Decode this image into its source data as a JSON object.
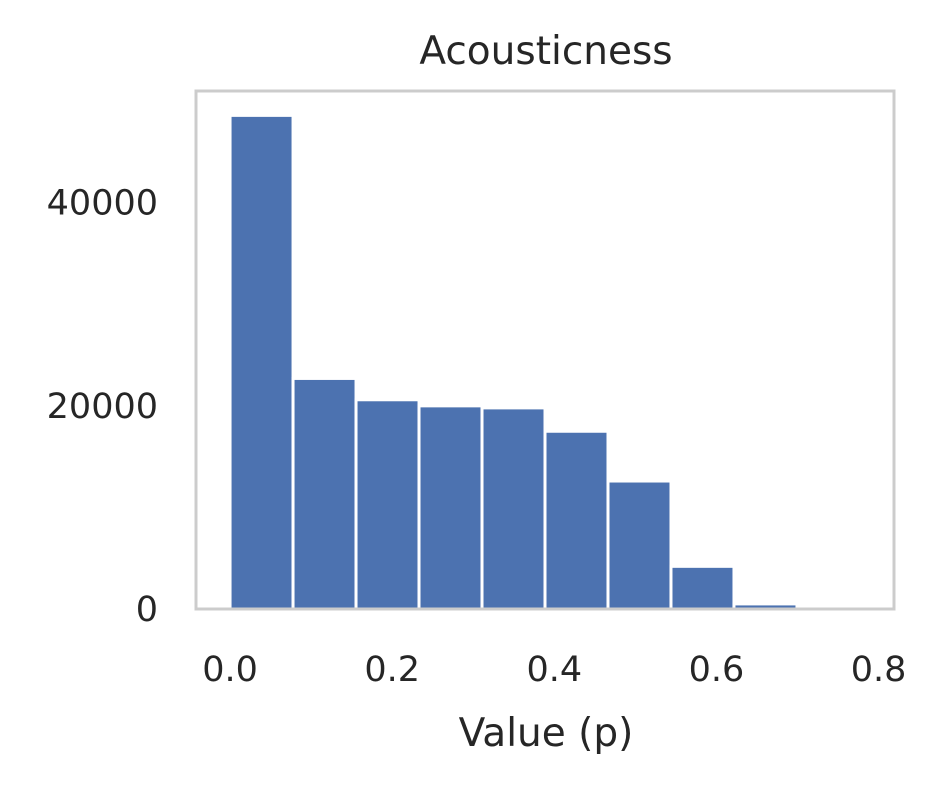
{
  "chart_data": {
    "type": "bar",
    "title": "Acousticness",
    "xlabel": "Value (p)",
    "ylabel": "",
    "bin_edges": [
      0.0,
      0.0777,
      0.1554,
      0.2331,
      0.3108,
      0.3885,
      0.4662,
      0.5439,
      0.6216,
      0.6993,
      0.777
    ],
    "values": [
      48600,
      22700,
      20600,
      20000,
      19800,
      17500,
      12600,
      4200,
      500,
      0
    ],
    "xlim": [
      -0.042,
      0.819
    ],
    "ylim": [
      0,
      51000
    ],
    "xticks": [
      0.0,
      0.2,
      0.4,
      0.6,
      0.8
    ],
    "xtick_labels": [
      "0.0",
      "0.2",
      "0.4",
      "0.6",
      "0.8"
    ],
    "yticks": [
      0,
      20000,
      40000
    ],
    "ytick_labels": [
      "0",
      "20000",
      "40000"
    ],
    "bar_color": "#4c72b0",
    "bar_edge_color": "#ffffff",
    "frame_color": "#cccccc",
    "grid": false
  }
}
